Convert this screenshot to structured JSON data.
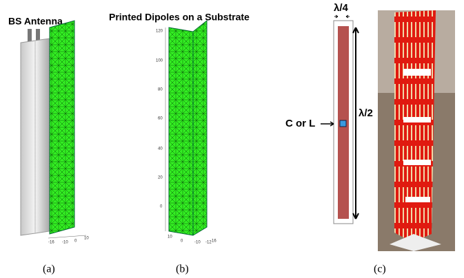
{
  "panels": [
    {
      "label": "(a)",
      "title": "BS Antenna",
      "axis_ticks": [
        "-16",
        "-10",
        "0",
        "10"
      ]
    },
    {
      "label": "(b)",
      "title": "Printed Dipoles on a Substrate",
      "y_ticks": [
        "120",
        "100",
        "80",
        "60",
        "40",
        "20",
        "0"
      ],
      "axis_ticks": [
        "10",
        "0",
        "-10",
        "-12",
        "16"
      ]
    },
    {
      "label": "(c)",
      "annotations": [
        "λ/4",
        "λ/2",
        "C or L"
      ]
    }
  ]
}
